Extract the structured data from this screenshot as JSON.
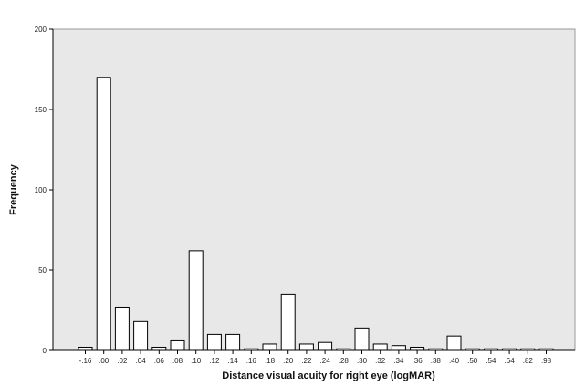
{
  "chart_data": {
    "type": "bar",
    "xlabel": "Distance visual acuity for right eye (logMAR)",
    "ylabel": "Frequency",
    "ylim": [
      0,
      200
    ],
    "yticks": [
      0,
      50,
      100,
      150,
      200
    ],
    "grid": false,
    "categories": [
      "-.16",
      ".00",
      ".02",
      ".04",
      ".06",
      ".08",
      ".10",
      ".12",
      ".14",
      ".16",
      ".18",
      ".20",
      ".22",
      ".24",
      ".28",
      ".30",
      ".32",
      ".34",
      ".36",
      ".38",
      ".40",
      ".50",
      ".54",
      ".64",
      ".82",
      ".98"
    ],
    "values": [
      2,
      170,
      27,
      18,
      2,
      6,
      62,
      10,
      10,
      1,
      4,
      35,
      4,
      5,
      1,
      14,
      4,
      3,
      2,
      1,
      9,
      1,
      1,
      1,
      1,
      1
    ],
    "colors": {
      "plot_background": "#e8e8e8",
      "bar_fill": "#ffffff",
      "bar_stroke": "#000000"
    }
  }
}
